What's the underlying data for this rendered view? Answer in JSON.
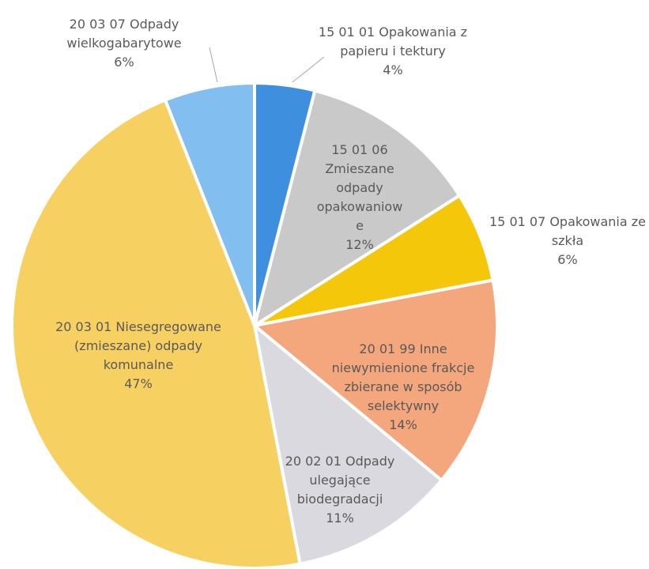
{
  "chart_data": {
    "type": "pie",
    "categories": [
      "15 01 01 Opakowania z papieru i tektury",
      "15 01 06 Zmieszane odpady opakowaniowe",
      "15 01 07 Opakowania ze szkła",
      "20 01 99 Inne niewymienione frakcje zbierane w sposób selektywny",
      "20 02 01 Odpady ulegające biodegradacji",
      "20 03 01 Niesegregowane (zmieszane) odpady komunalne",
      "20 03 07 Odpady wielkogabarytowe"
    ],
    "values": [
      4,
      12,
      6,
      14,
      11,
      47,
      6
    ],
    "value_labels": [
      "4%",
      "12%",
      "6%",
      "14%",
      "11%",
      "47%",
      "6%"
    ],
    "colors": [
      "#3f8fdf",
      "#c9c9c9",
      "#f5c70a",
      "#f4a67c",
      "#d9d9df",
      "#f7d062",
      "#82bff0"
    ]
  }
}
